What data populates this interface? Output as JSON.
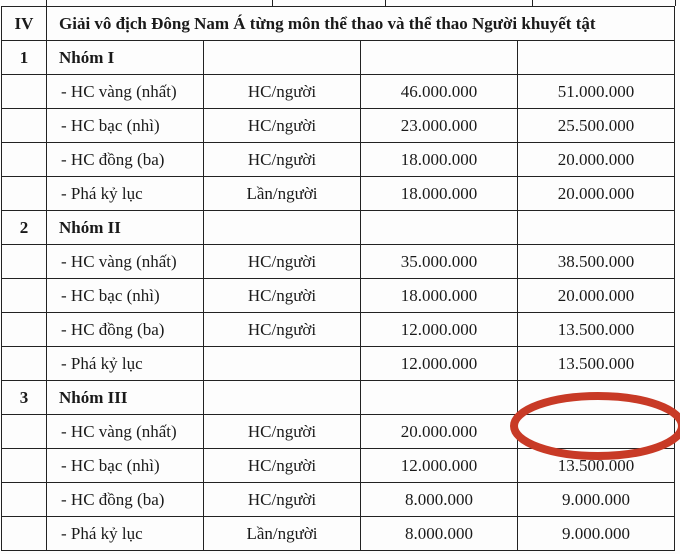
{
  "section": {
    "number": "IV",
    "title": "Giải vô địch Đông Nam Á từng môn thể thao và thể thao Người khuyết tật"
  },
  "groups": [
    {
      "number": "1",
      "name": "Nhóm I",
      "rows": [
        {
          "item": "- HC vàng (nhất)",
          "unit": "HC/người",
          "old": "46.000.000",
          "new": "51.000.000"
        },
        {
          "item": "- HC bạc (nhì)",
          "unit": "HC/người",
          "old": "23.000.000",
          "new": "25.500.000"
        },
        {
          "item": "- HC đồng (ba)",
          "unit": "HC/người",
          "old": "18.000.000",
          "new": "20.000.000"
        },
        {
          "item": "- Phá kỷ lục",
          "unit": "Lần/người",
          "old": "18.000.000",
          "new": "20.000.000"
        }
      ]
    },
    {
      "number": "2",
      "name": "Nhóm II",
      "rows": [
        {
          "item": "- HC vàng (nhất)",
          "unit": "HC/người",
          "old": "35.000.000",
          "new": "38.500.000"
        },
        {
          "item": "- HC bạc (nhì)",
          "unit": "HC/người",
          "old": "18.000.000",
          "new": "20.000.000"
        },
        {
          "item": "- HC đồng (ba)",
          "unit": "HC/người",
          "old": "12.000.000",
          "new": "13.500.000"
        },
        {
          "item": "- Phá kỷ lục",
          "unit": "",
          "old": "12.000.000",
          "new": "13.500.000"
        }
      ]
    },
    {
      "number": "3",
      "name": "Nhóm III",
      "rows": [
        {
          "item": "- HC vàng (nhất)",
          "unit": "HC/người",
          "old": "20.000.000",
          "new": ""
        },
        {
          "item": "- HC bạc (nhì)",
          "unit": "HC/người",
          "old": "12.000.000",
          "new": "13.500.000"
        },
        {
          "item": "- HC đồng (ba)",
          "unit": "HC/người",
          "old": "8.000.000",
          "new": "9.000.000"
        },
        {
          "item": "- Phá kỷ lục",
          "unit": "Lần/người",
          "old": "8.000.000",
          "new": "9.000.000"
        }
      ]
    }
  ],
  "annotation": {
    "shape": "ellipse",
    "color": "#c83a26",
    "target": "Nhóm III - HC vàng (nhất) new value (empty)"
  }
}
